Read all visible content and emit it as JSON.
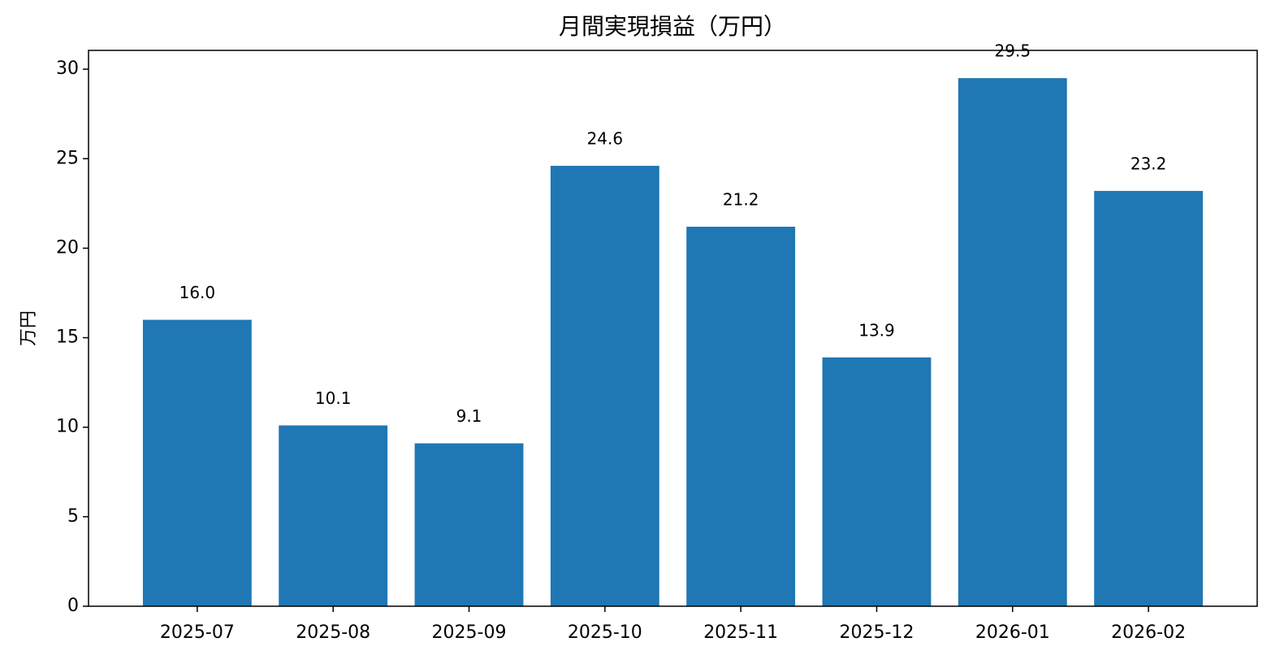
{
  "chart_data": {
    "type": "bar",
    "title": "月間実現損益（万円）",
    "y_label": "万円",
    "categories": [
      "2025-07",
      "2025-08",
      "2025-09",
      "2025-10",
      "2025-11",
      "2025-12",
      "2026-01",
      "2026-02"
    ],
    "values": [
      16.0,
      10.1,
      9.1,
      24.6,
      21.2,
      13.9,
      29.5,
      23.2
    ],
    "value_labels": [
      "16.0",
      "10.1",
      "9.1",
      "24.6",
      "21.2",
      "13.9",
      "29.5",
      "23.2"
    ],
    "color": "#1f77b4",
    "ylim": [
      0,
      31.05
    ],
    "yticks": [
      0,
      5,
      10,
      15,
      20,
      25,
      30
    ],
    "grid": false
  }
}
